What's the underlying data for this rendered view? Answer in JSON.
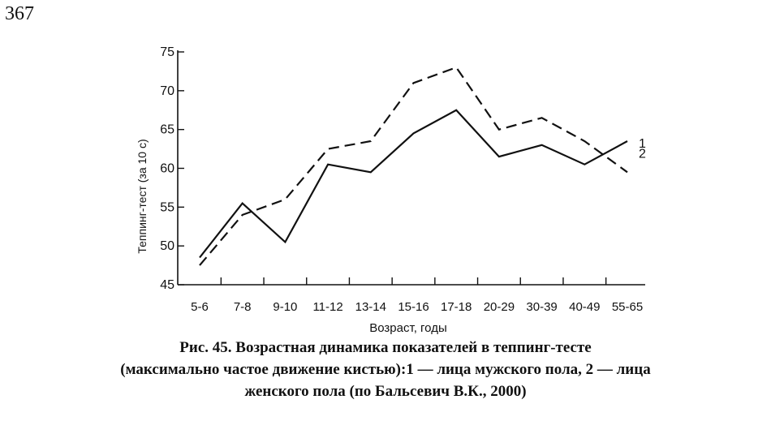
{
  "page_number": "367",
  "caption": {
    "line1": "Рис. 45. Возрастная динамика показателей в теппинг-тесте",
    "line2": "(максимально частое движение кистью):1 — лица мужского пола, 2 — лица",
    "line3": "женского пола (по Бальсевич В.К., 2000)"
  },
  "chart_data": {
    "type": "line",
    "categories": [
      "5-6",
      "7-8",
      "9-10",
      "11-12",
      "13-14",
      "15-16",
      "17-18",
      "20-29",
      "30-39",
      "40-49",
      "55-65"
    ],
    "series": [
      {
        "name": "1",
        "style": "solid",
        "values": [
          48.5,
          55.5,
          50.5,
          60.5,
          59.5,
          64.5,
          67.5,
          61.5,
          63.0,
          60.5,
          63.5
        ]
      },
      {
        "name": "2",
        "style": "dashed",
        "values": [
          47.5,
          54.0,
          56.0,
          62.5,
          63.5,
          71.0,
          73.0,
          65.0,
          66.5,
          63.5,
          59.5
        ]
      }
    ],
    "xlabel": "Возраст, годы",
    "ylabel": "Теппинг-тест (за 10 с)",
    "yticks": [
      45,
      50,
      55,
      60,
      65,
      70,
      75
    ],
    "ylim": [
      45,
      75
    ],
    "grid": false,
    "colors": {
      "line": "#111111"
    }
  }
}
